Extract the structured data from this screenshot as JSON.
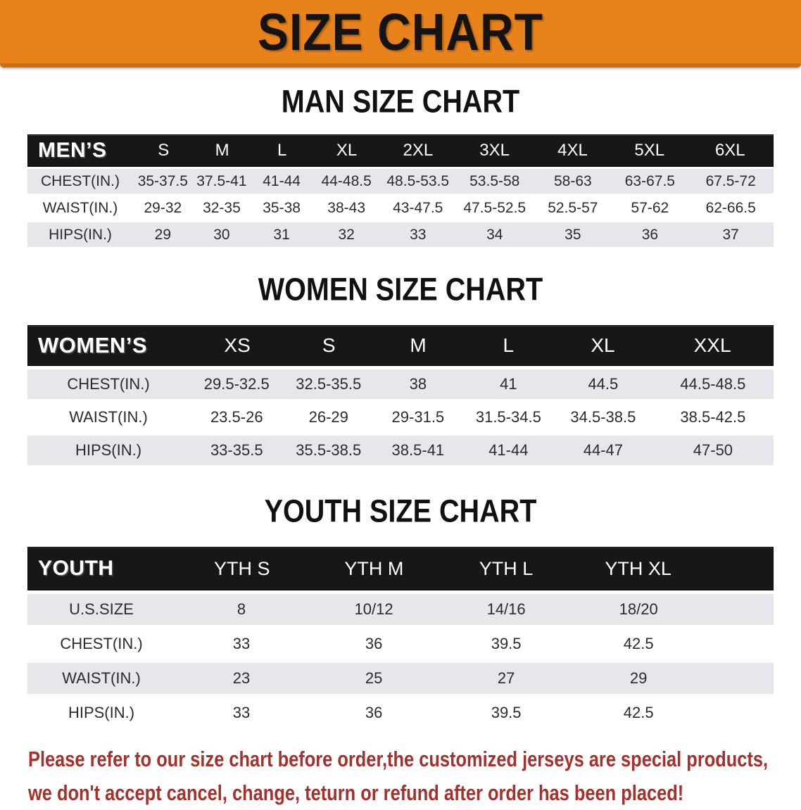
{
  "banner": {
    "title": "SIZE CHART"
  },
  "colors": {
    "banner_bg": "#e8821b",
    "banner_edge": "#cf6e10",
    "bar_bg": "#171717",
    "row_alt": "#e7e6ea",
    "disclaimer": "#a6302a"
  },
  "men": {
    "title": "MAN SIZE CHART",
    "label": "MEN’S",
    "sizes": [
      "S",
      "M",
      "L",
      "XL",
      "2XL",
      "3XL",
      "4XL",
      "5XL",
      "6XL"
    ],
    "rows": [
      {
        "label": "CHEST(IN.)",
        "values": [
          "35-37.5",
          "37.5-41",
          "41-44",
          "44-48.5",
          "48.5-53.5",
          "53.5-58",
          "58-63",
          "63-67.5",
          "67.5-72"
        ]
      },
      {
        "label": "WAIST(IN.)",
        "values": [
          "29-32",
          "32-35",
          "35-38",
          "38-43",
          "43-47.5",
          "47.5-52.5",
          "52.5-57",
          "57-62",
          "62-66.5"
        ]
      },
      {
        "label": "HIPS(IN.)",
        "values": [
          "29",
          "30",
          "31",
          "32",
          "33",
          "34",
          "35",
          "36",
          "37"
        ]
      }
    ]
  },
  "women": {
    "title": "WOMEN SIZE CHART",
    "label": "WOMEN’S",
    "sizes": [
      "XS",
      "S",
      "M",
      "L",
      "XL",
      "XXL"
    ],
    "rows": [
      {
        "label": "CHEST(IN.)",
        "values": [
          "29.5-32.5",
          "32.5-35.5",
          "38",
          "41",
          "44.5",
          "44.5-48.5"
        ]
      },
      {
        "label": "WAIST(IN.)",
        "values": [
          "23.5-26",
          "26-29",
          "29-31.5",
          "31.5-34.5",
          "34.5-38.5",
          "38.5-42.5"
        ]
      },
      {
        "label": "HIPS(IN.)",
        "values": [
          "33-35.5",
          "35.5-38.5",
          "38.5-41",
          "41-44",
          "44-47",
          "47-50"
        ]
      }
    ]
  },
  "youth": {
    "title": "YOUTH SIZE CHART",
    "label": "YOUTH",
    "sizes": [
      "YTH S",
      "YTH M",
      "YTH L",
      "YTH XL"
    ],
    "rows": [
      {
        "label": "U.S.SIZE",
        "values": [
          "8",
          "10/12",
          "14/16",
          "18/20"
        ]
      },
      {
        "label": "CHEST(IN.)",
        "values": [
          "33",
          "36",
          "39.5",
          "42.5"
        ]
      },
      {
        "label": "WAIST(IN.)",
        "values": [
          "23",
          "25",
          "27",
          "29"
        ]
      },
      {
        "label": "HIPS(IN.)",
        "values": [
          "33",
          "36",
          "39.5",
          "42.5"
        ]
      }
    ]
  },
  "disclaimer": {
    "line1": "Please refer to our size chart before order,the customized jerseys are special products,",
    "line2": "we don't accept cancel, change, teturn or refund after order has been placed!"
  }
}
